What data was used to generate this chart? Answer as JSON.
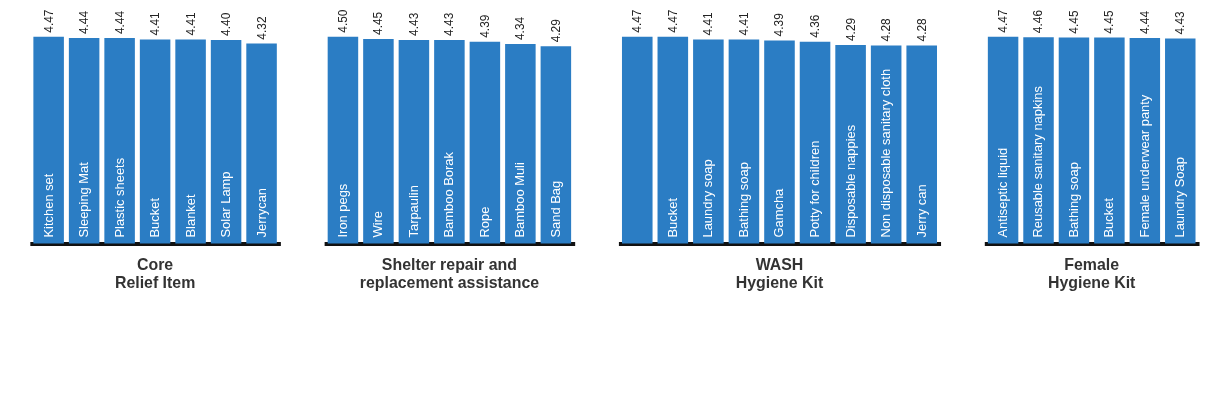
{
  "chart_data": [
    {
      "type": "bar",
      "title": "Core\nRelief Item",
      "categories": [
        "Kitchen set",
        "Sleeping Mat",
        "Plastic sheets",
        "Bucket",
        "Blanket",
        "Solar Lamp",
        "Jerrycan"
      ],
      "values": [
        4.47,
        4.44,
        4.44,
        4.41,
        4.41,
        4.4,
        4.32
      ],
      "color": "#2b7dc4",
      "value_labels": [
        "4.47",
        "4.44",
        "4.44",
        "4.41",
        "4.41",
        "4.40",
        "4.32"
      ]
    },
    {
      "type": "bar",
      "title": "Shelter repair and\nreplacement assistance",
      "categories": [
        "Iron pegs",
        "Wire",
        "Tarpaulin",
        "Bamboo Borak",
        "Rope",
        "Bamboo Muli",
        "Sand Bag"
      ],
      "values": [
        4.5,
        4.45,
        4.43,
        4.43,
        4.39,
        4.34,
        4.29
      ],
      "color": "#2b7dc4",
      "value_labels": [
        "4.50",
        "4.45",
        "4.43",
        "4.43",
        "4.39",
        "4.34",
        "4.29"
      ]
    },
    {
      "type": "bar",
      "title": "WASH\nHygiene Kit",
      "categories": [
        null,
        "Bucket",
        "Laundry soap",
        "Bathing soap",
        "Gamcha",
        "Potty for children",
        "Disposable nappies",
        "Non disposable sanitary cloth",
        "Jerry can"
      ],
      "values": [
        4.47,
        4.47,
        4.41,
        4.41,
        4.39,
        4.36,
        4.29,
        4.28,
        4.28
      ],
      "color": "#2b7dc4",
      "value_labels": [
        "4.47",
        "4.47",
        "4.41",
        "4.41",
        "4.39",
        "4.36",
        "4.29",
        "4.28",
        "4.28"
      ]
    },
    {
      "type": "bar",
      "title": "Female\nHygiene Kit",
      "categories": [
        "Antiseptic liquid",
        "Reusable sanitary napkins",
        "Bathing soap",
        "Bucket",
        "Female underwear panty",
        "Laundry Soap"
      ],
      "values": [
        4.47,
        4.46,
        4.45,
        4.45,
        4.44,
        4.43
      ],
      "color": "#2b7dc4",
      "value_labels": [
        "4.47",
        "4.46",
        "4.45",
        "4.45",
        "4.44",
        "4.43"
      ]
    }
  ]
}
